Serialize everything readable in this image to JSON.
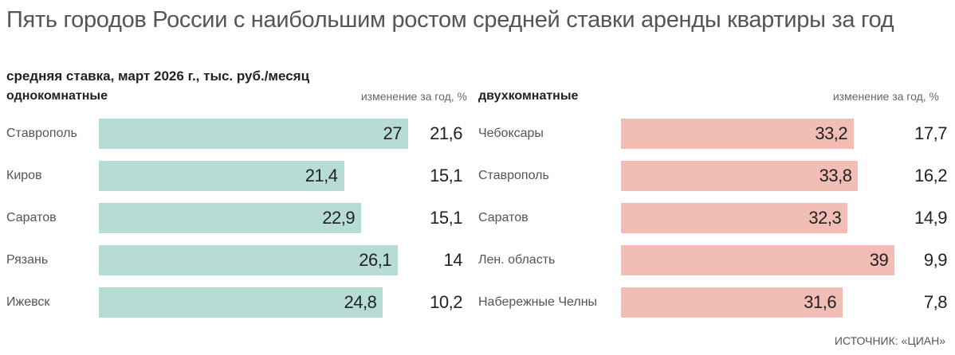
{
  "chart_data": [
    {
      "type": "bar",
      "orientation": "horizontal",
      "panel": "однокомнатные",
      "change_header": "изменение за год, %",
      "color": "#b6dcd5",
      "categories": [
        "Ставрополь",
        "Киров",
        "Саратов",
        "Рязань",
        "Ижевск"
      ],
      "values": [
        27,
        21.4,
        22.9,
        26.1,
        24.8
      ],
      "value_labels": [
        "27",
        "21,4",
        "22,9",
        "26,1",
        "24,8"
      ],
      "change": [
        "21,6",
        "15,1",
        "15,1",
        "14",
        "10,2"
      ]
    },
    {
      "type": "bar",
      "orientation": "horizontal",
      "panel": "двухкомнатные",
      "change_header": "изменение за год, %",
      "color": "#f2bdb5",
      "categories": [
        "Чебоксары",
        "Ставрополь",
        "Саратов",
        "Лен. область",
        "Набережные Челны"
      ],
      "values": [
        33.2,
        33.8,
        32.3,
        39,
        31.6
      ],
      "value_labels": [
        "33,2",
        "33,8",
        "32,3",
        "39",
        "31,6"
      ],
      "change": [
        "17,7",
        "16,2",
        "14,9",
        "9,9",
        "7,8"
      ]
    }
  ],
  "title": "Пять городов России с наибольшим ростом средней ставки аренды квартиры за год",
  "subtitle": "средняя ставка, март 2026 г., тыс. руб./месяц",
  "source": "ИСТОЧНИК: «ЦИАН»"
}
